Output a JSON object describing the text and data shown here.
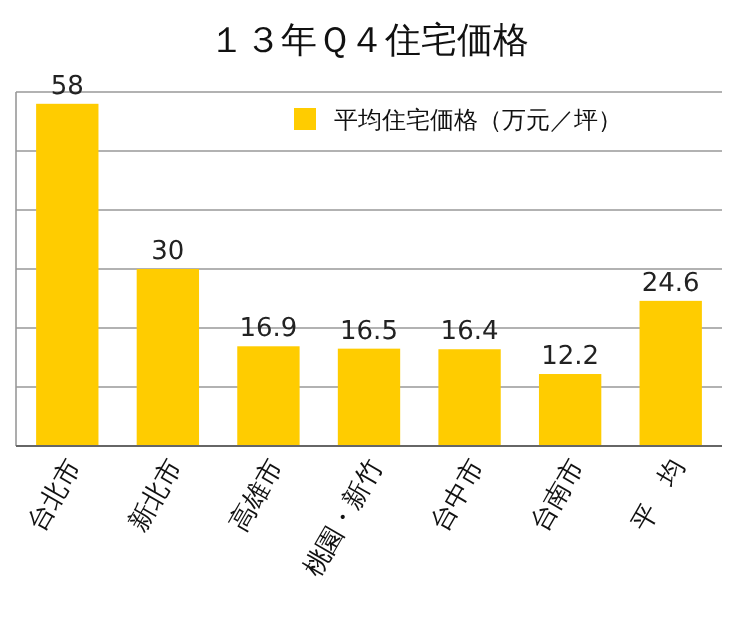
{
  "chart_data": {
    "type": "bar",
    "title": "１３年Ｑ４住宅価格",
    "categories": [
      "台北市",
      "新北市",
      "高雄市",
      "桃園・新竹",
      "台中市",
      "台南市",
      "平　均"
    ],
    "series": [
      {
        "name": "平均住宅価格（万元／坪）",
        "color": "#ffcc00",
        "values": [
          58,
          30,
          16.9,
          16.5,
          16.4,
          12.2,
          24.6
        ]
      }
    ],
    "ylim": [
      0,
      60
    ],
    "yticks": [
      {
        "value": 0,
        "label": null
      },
      {
        "value": 10,
        "label": null
      },
      {
        "value": 20,
        "label": null
      },
      {
        "value": 30,
        "label": null
      },
      {
        "value": 40,
        "label": null
      },
      {
        "value": 50,
        "label": null
      },
      {
        "value": 60,
        "label": null
      }
    ],
    "tick_labels": "x",
    "grid": "y",
    "legend": "top right",
    "data_labels": true
  }
}
